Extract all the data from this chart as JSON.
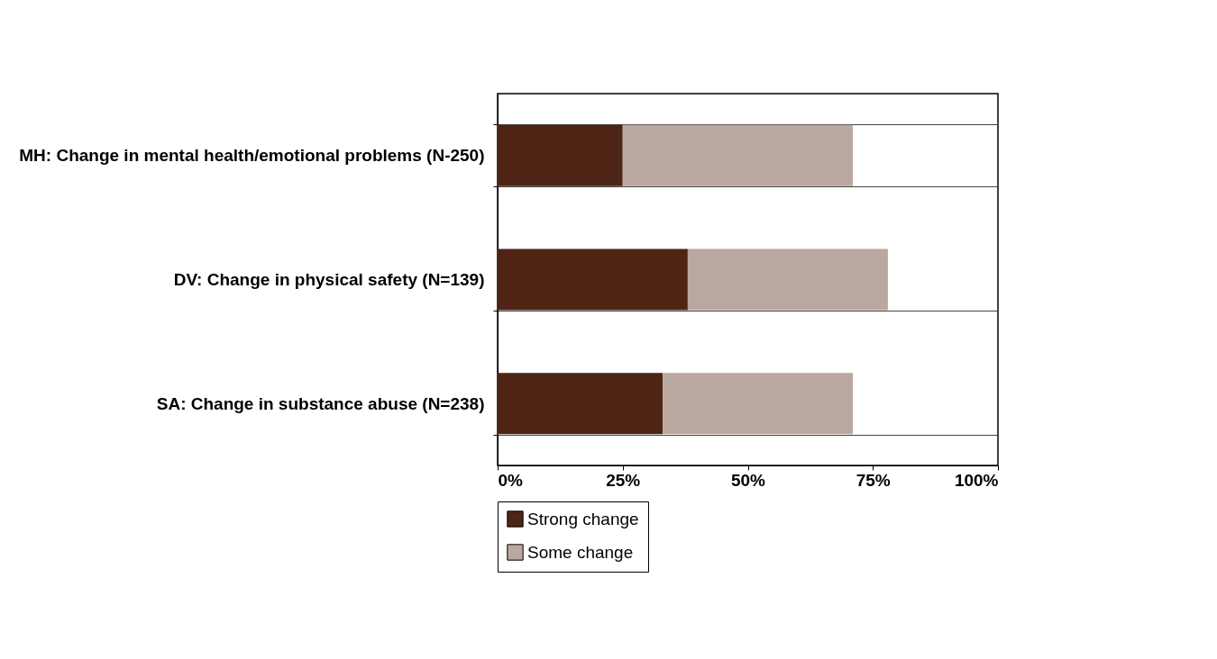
{
  "chart_data": {
    "type": "bar",
    "orientation": "horizontal",
    "stacked": true,
    "categories": [
      "MH: Change in mental health/emotional problems (N-250)",
      "DV: Change in physical safety (N=139)",
      "SA: Change in substance abuse (N=238)"
    ],
    "series": [
      {
        "name": "Strong change",
        "color": "#4e2415",
        "values": [
          25,
          38,
          33
        ]
      },
      {
        "name": "Some change",
        "color": "#b9a8a0",
        "values": [
          46,
          40,
          38
        ]
      }
    ],
    "xlim": [
      0,
      100
    ],
    "xticks": [
      {
        "value": 0,
        "label": "0%"
      },
      {
        "value": 25,
        "label": "25%"
      },
      {
        "value": 50,
        "label": "50%"
      },
      {
        "value": 75,
        "label": "75%"
      },
      {
        "value": 100,
        "label": "100%"
      }
    ],
    "grid": "y",
    "legend": "bottom"
  }
}
